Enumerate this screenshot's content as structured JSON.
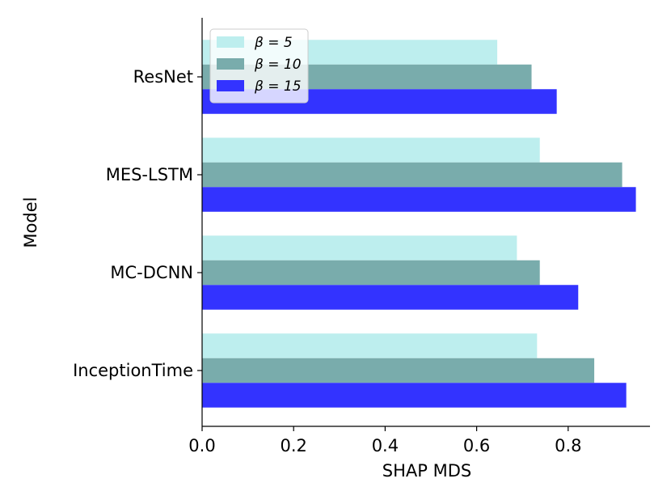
{
  "chart_data": {
    "type": "bar",
    "orientation": "horizontal",
    "title": "",
    "xlabel": "SHAP MDS",
    "ylabel": "Model",
    "xlim": [
      0,
      1.0
    ],
    "xticks": [
      "0.0",
      "0.2",
      "0.4",
      "0.6",
      "0.8"
    ],
    "categories": [
      "ResNet",
      "MES-LSTM",
      "MC-DCNN",
      "InceptionTime"
    ],
    "series": [
      {
        "name": "β = 5",
        "color": "#bdeeee",
        "values": [
          0.645,
          0.738,
          0.688,
          0.732
        ]
      },
      {
        "name": "β = 10",
        "color": "#79acac",
        "values": [
          0.72,
          0.918,
          0.738,
          0.857
        ]
      },
      {
        "name": "β = 15",
        "color": "#3333ff",
        "values": [
          0.775,
          0.948,
          0.822,
          0.927
        ]
      }
    ],
    "legend": {
      "position": "top-left"
    },
    "grid": false
  }
}
